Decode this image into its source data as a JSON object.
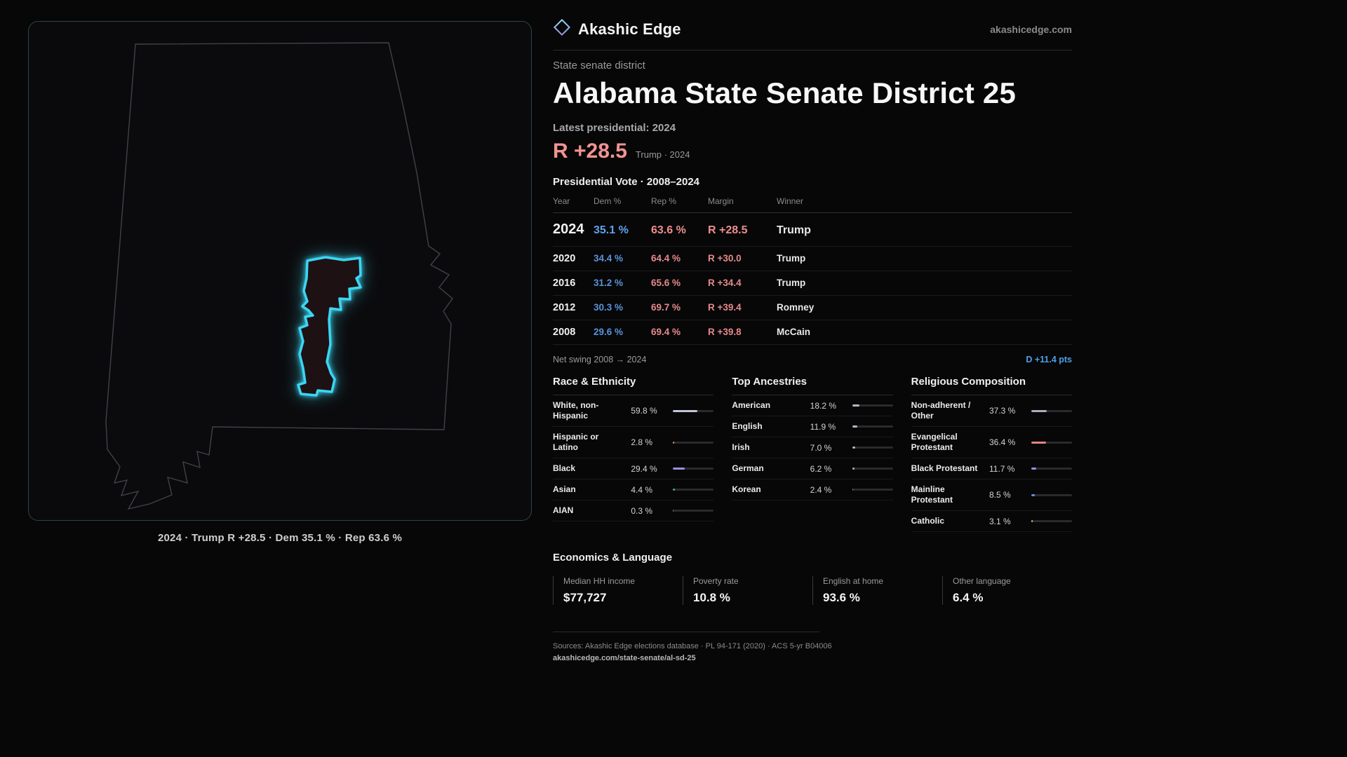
{
  "brand": {
    "name": "Akashic Edge",
    "site": "akashicedge.com"
  },
  "map": {
    "caption": "2024 · Trump R +28.5 · Dem 35.1 % · Rep 63.6 %"
  },
  "header": {
    "kicker": "State senate district",
    "title": "Alabama State Senate District 25",
    "latest_label": "Latest presidential: 2024",
    "headline_margin": "R +28.5",
    "headline_note": "Trump · 2024"
  },
  "vote_table": {
    "title": "Presidential Vote · 2008–2024",
    "columns": [
      "Year",
      "Dem %",
      "Rep %",
      "Margin",
      "Winner"
    ],
    "rows": [
      {
        "year": "2024",
        "dem": "35.1 %",
        "rep": "63.6 %",
        "margin": "R +28.5",
        "winner": "Trump"
      },
      {
        "year": "2020",
        "dem": "34.4 %",
        "rep": "64.4 %",
        "margin": "R +30.0",
        "winner": "Trump"
      },
      {
        "year": "2016",
        "dem": "31.2 %",
        "rep": "65.6 %",
        "margin": "R +34.4",
        "winner": "Trump"
      },
      {
        "year": "2012",
        "dem": "30.3 %",
        "rep": "69.7 %",
        "margin": "R +39.4",
        "winner": "Romney"
      },
      {
        "year": "2008",
        "dem": "29.6 %",
        "rep": "69.4 %",
        "margin": "R +39.8",
        "winner": "McCain"
      }
    ]
  },
  "swing": {
    "label": "Net swing 2008 → 2024",
    "value": "D +11.4 pts"
  },
  "demographics": {
    "race": {
      "title": "Race & Ethnicity",
      "rows": [
        {
          "label": "White, non-Hispanic",
          "value": "59.8 %",
          "pct": 59.8,
          "color": "#c2c5d6"
        },
        {
          "label": "Hispanic or Latino",
          "value": "2.8 %",
          "pct": 2.8,
          "color": "#e0984c"
        },
        {
          "label": "Black",
          "value": "29.4 %",
          "pct": 29.4,
          "color": "#9c8fe0"
        },
        {
          "label": "Asian",
          "value": "4.4 %",
          "pct": 4.4,
          "color": "#45b585"
        },
        {
          "label": "AIAN",
          "value": "0.3 %",
          "pct": 0.3,
          "color": "#c97b54"
        }
      ]
    },
    "ancestries": {
      "title": "Top Ancestries",
      "rows": [
        {
          "label": "American",
          "value": "18.2 %",
          "pct": 18.2,
          "color": "#b4b7c4"
        },
        {
          "label": "English",
          "value": "11.9 %",
          "pct": 11.9,
          "color": "#b4b7c4"
        },
        {
          "label": "Irish",
          "value": "7.0 %",
          "pct": 7.0,
          "color": "#b4b7c4"
        },
        {
          "label": "German",
          "value": "6.2 %",
          "pct": 6.2,
          "color": "#b4b7c4"
        },
        {
          "label": "Korean",
          "value": "2.4 %",
          "pct": 2.4,
          "color": "#3fb5ad"
        }
      ]
    },
    "religion": {
      "title": "Religious Composition",
      "rows": [
        {
          "label": "Non-adherent / Other",
          "value": "37.3 %",
          "pct": 37.3,
          "color": "#a9adbb"
        },
        {
          "label": "Evangelical Protestant",
          "value": "36.4 %",
          "pct": 36.4,
          "color": "#e88282"
        },
        {
          "label": "Black Protestant",
          "value": "11.7 %",
          "pct": 11.7,
          "color": "#9c8fe0"
        },
        {
          "label": "Mainline Protestant",
          "value": "8.5 %",
          "pct": 8.5,
          "color": "#5f90e0"
        },
        {
          "label": "Catholic",
          "value": "3.1 %",
          "pct": 3.1,
          "color": "#e0c35f"
        }
      ]
    }
  },
  "economics": {
    "title": "Economics & Language",
    "stats": [
      {
        "label": "Median HH income",
        "value": "$77,727"
      },
      {
        "label": "Poverty rate",
        "value": "10.8 %"
      },
      {
        "label": "English at home",
        "value": "93.6 %"
      },
      {
        "label": "Other language",
        "value": "6.4 %"
      }
    ]
  },
  "footer": {
    "sources": "Sources: Akashic Edge elections database · PL 94-171 (2020) · ACS 5-yr B04006",
    "permalink": "akashicedge.com/state-senate/al-sd-25"
  }
}
